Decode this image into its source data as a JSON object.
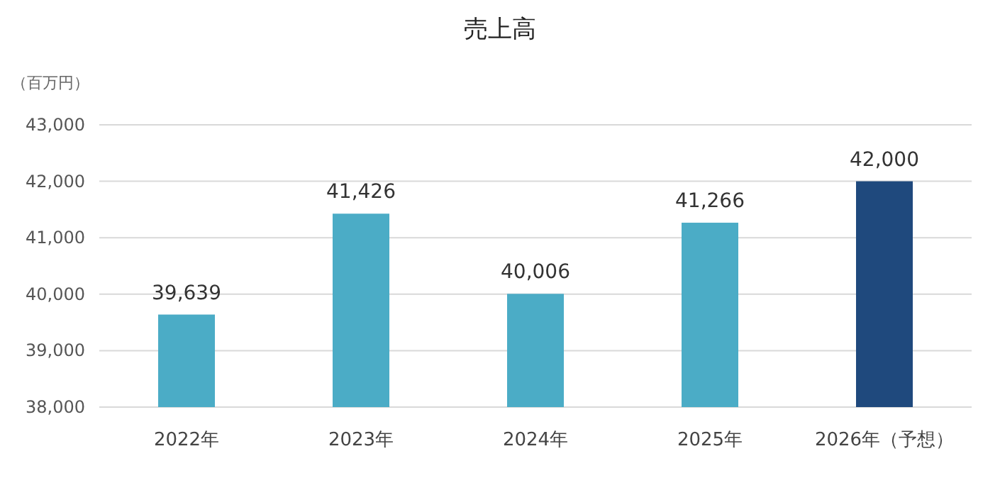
{
  "chart_data": {
    "type": "bar",
    "title": "売上高",
    "ylabel": "（百万円）",
    "categories": [
      "2022年",
      "2023年",
      "2024年",
      "2025年",
      "2026年（予想）"
    ],
    "values": [
      39639,
      41426,
      40006,
      41266,
      42000
    ],
    "colors": [
      "#4bacc6",
      "#4bacc6",
      "#4bacc6",
      "#4bacc6",
      "#1f497d"
    ],
    "ylim": [
      38000,
      43000
    ],
    "yticks": [
      {
        "value": 38000,
        "label": "38,000"
      },
      {
        "value": 39000,
        "label": "39,000"
      },
      {
        "value": 40000,
        "label": "40,000"
      },
      {
        "value": 41000,
        "label": "41,000"
      },
      {
        "value": 42000,
        "label": "42,000"
      },
      {
        "value": 43000,
        "label": "43,000"
      }
    ],
    "value_labels": [
      "39,639",
      "41,426",
      "40,006",
      "41,266",
      "42,000"
    ],
    "grid": "y"
  }
}
